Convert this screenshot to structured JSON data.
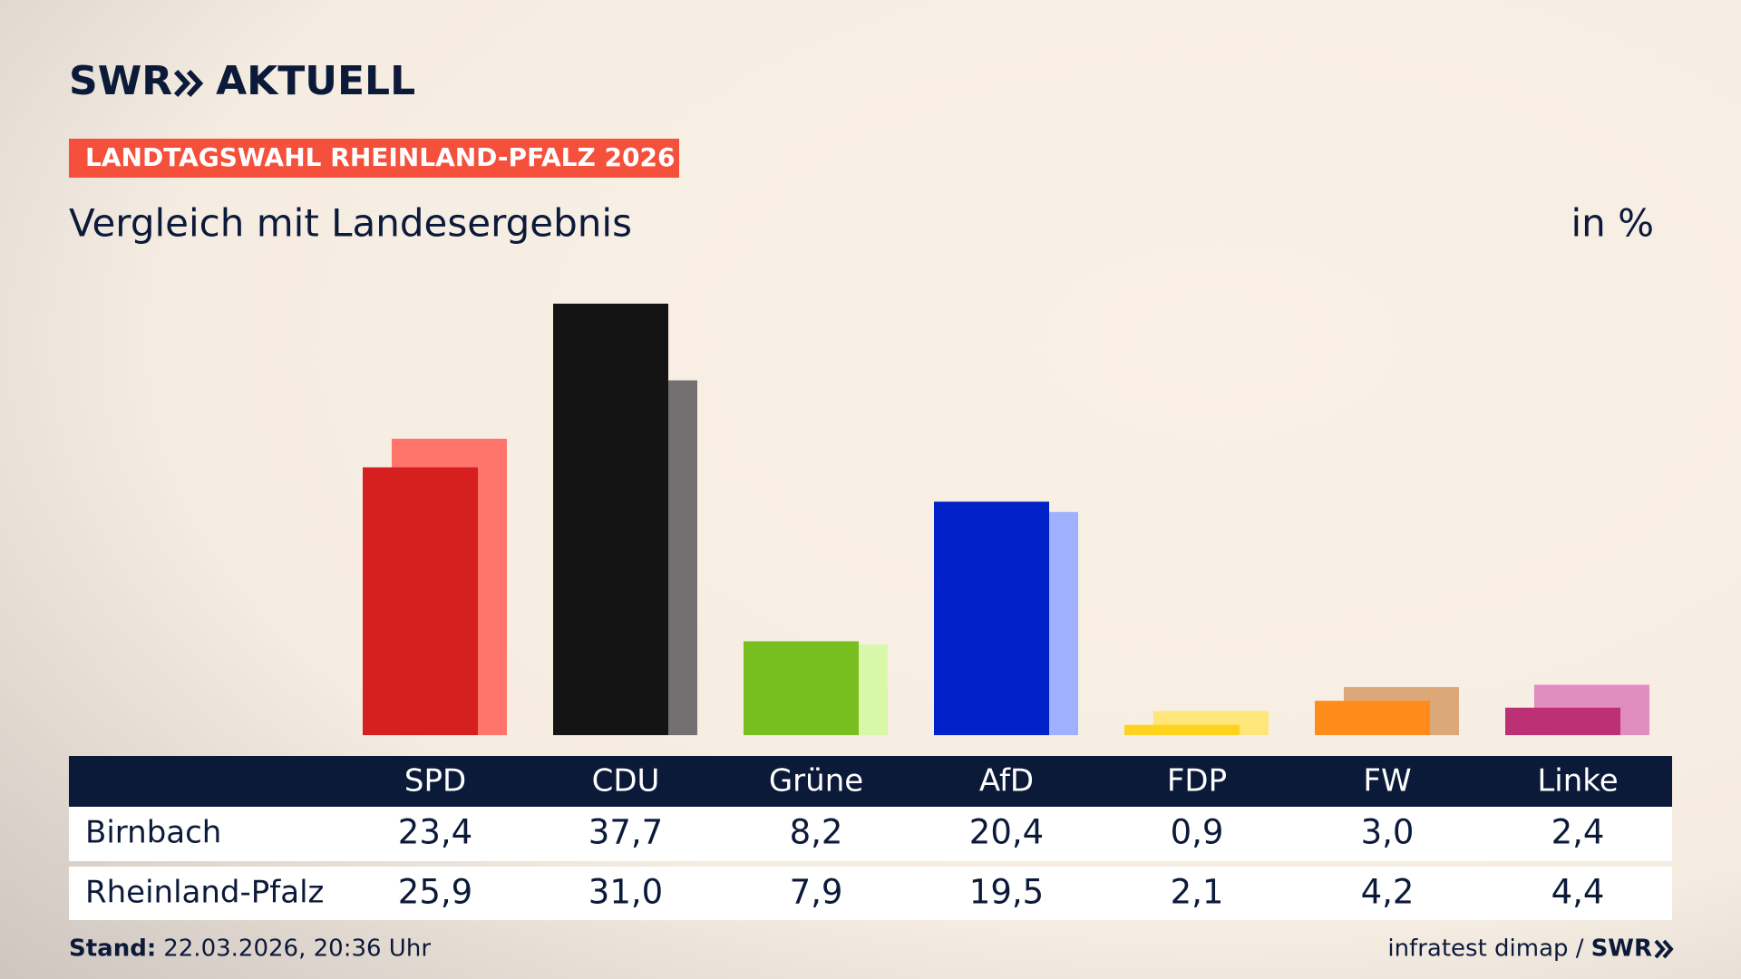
{
  "brand": "SWR",
  "brand_sub": "AKTUELL",
  "chart_data": {
    "type": "bar",
    "tag": "LANDTAGSWAHL RHEINLAND-PFALZ 2026",
    "title": "Vergleich mit Landesergebnis",
    "unit": "in %",
    "categories": [
      "SPD",
      "CDU",
      "Grüne",
      "AfD",
      "FDP",
      "FW",
      "Linke"
    ],
    "series": [
      {
        "name": "Birnbach",
        "colors": [
          "#d61f1f",
          "#141414",
          "#78be1e",
          "#0022c8",
          "#ffd21e",
          "#ff8c19",
          "#be3075"
        ],
        "values": [
          23.4,
          37.7,
          8.2,
          20.4,
          0.9,
          3.0,
          2.4
        ],
        "value_labels": [
          "23,4",
          "37,7",
          "8,2",
          "20,4",
          "0,9",
          "3,0",
          "2,4"
        ]
      },
      {
        "name": "Rheinland-Pfalz",
        "colors": [
          "#ff756b",
          "#727070",
          "#d8f7a8",
          "#9fb0ff",
          "#ffe67a",
          "#dca878",
          "#e08cbf"
        ],
        "values": [
          25.9,
          31.0,
          7.9,
          19.5,
          2.1,
          4.2,
          4.4
        ],
        "value_labels": [
          "25,9",
          "31,0",
          "7,9",
          "19,5",
          "2,1",
          "4,2",
          "4,4"
        ]
      }
    ]
  },
  "footer": {
    "stand_label": "Stand:",
    "stand": "22.03.2026, 20:36 Uhr",
    "source": "infratest dimap /"
  }
}
